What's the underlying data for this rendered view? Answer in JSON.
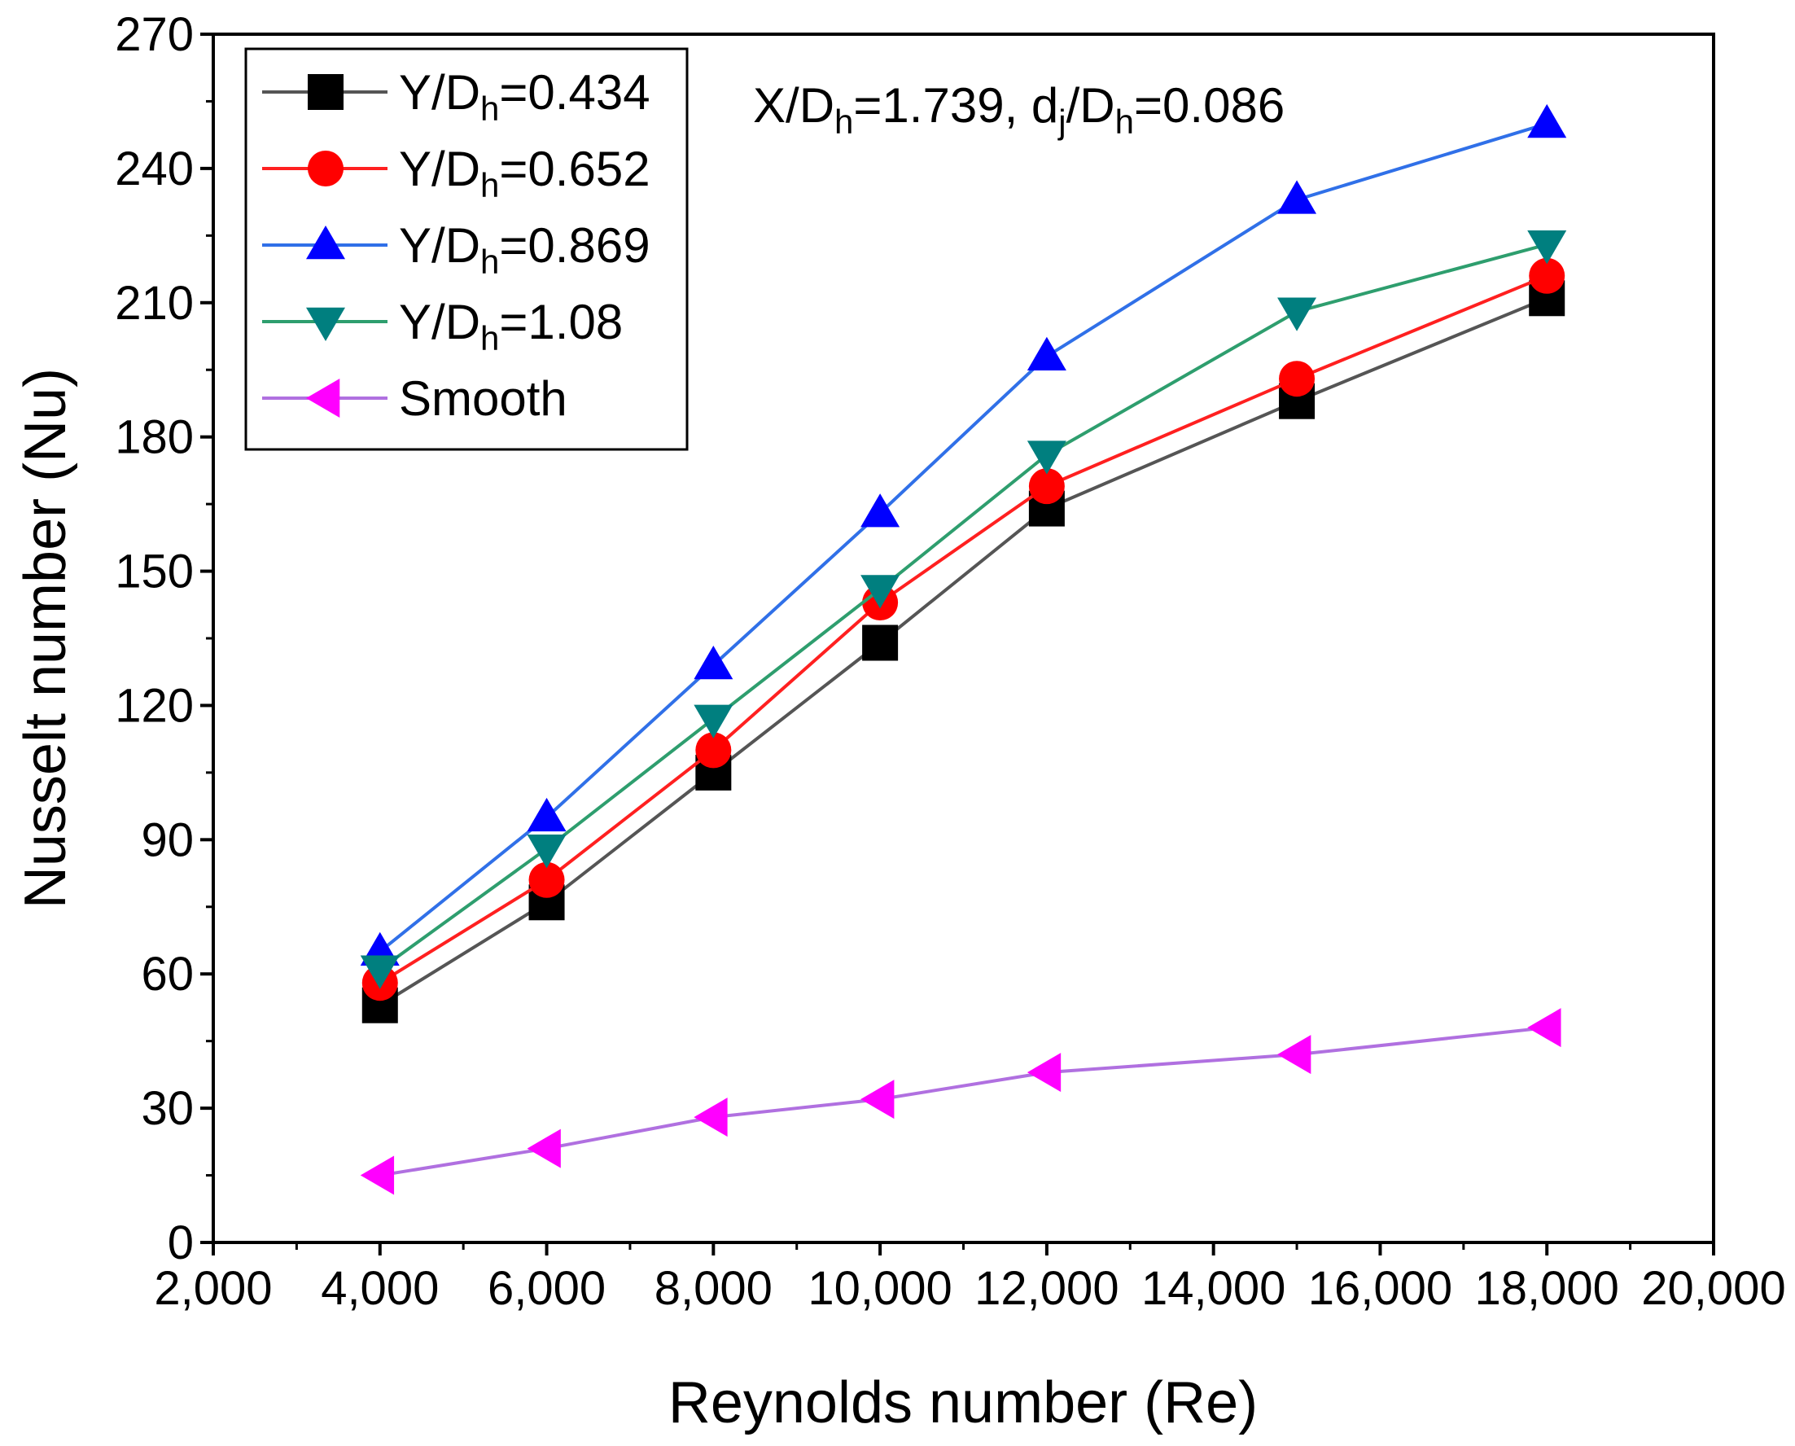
{
  "chart_data": {
    "type": "line",
    "xlabel": "Reynolds number (Re)",
    "ylabel": "Nusselt number (Nu)",
    "xlim": [
      2000,
      20000
    ],
    "ylim": [
      0,
      270
    ],
    "x_ticks": [
      2000,
      4000,
      6000,
      8000,
      10000,
      12000,
      14000,
      16000,
      18000,
      20000
    ],
    "x_tick_labels": [
      "2,000",
      "4,000",
      "6,000",
      "8,000",
      "10,000",
      "12,000",
      "14,000",
      "16,000",
      "18,000",
      "20,000"
    ],
    "y_ticks": [
      0,
      30,
      60,
      90,
      120,
      150,
      180,
      210,
      240,
      270
    ],
    "y_tick_labels": [
      "0",
      "30",
      "60",
      "90",
      "120",
      "150",
      "180",
      "210",
      "240",
      "270"
    ],
    "grid": false,
    "legend_position": "top-left",
    "annotation": {
      "parts": [
        "X/D",
        "h",
        "=1.739, d",
        "j",
        "/D",
        "h",
        "=0.086"
      ]
    },
    "series": [
      {
        "name": "Y/Dh=0.434",
        "label_parts": [
          "Y/D",
          "h",
          "=0.434"
        ],
        "marker": "square",
        "color": "#000000",
        "line_color": "#555555",
        "x": [
          4000,
          6000,
          8000,
          10000,
          12000,
          15000,
          18000
        ],
        "y": [
          53,
          76,
          105,
          134,
          164,
          188,
          211
        ]
      },
      {
        "name": "Y/Dh=0.652",
        "label_parts": [
          "Y/D",
          "h",
          "=0.652"
        ],
        "marker": "circle",
        "color": "#ff0000",
        "line_color": "#ff2020",
        "x": [
          4000,
          6000,
          8000,
          10000,
          12000,
          15000,
          18000
        ],
        "y": [
          58,
          81,
          110,
          143,
          169,
          193,
          216
        ]
      },
      {
        "name": "Y/Dh=0.869",
        "label_parts": [
          "Y/D",
          "h",
          "=0.869"
        ],
        "marker": "triangle-up",
        "color": "#0000ff",
        "line_color": "#3070e8",
        "x": [
          4000,
          6000,
          8000,
          10000,
          12000,
          15000,
          18000
        ],
        "y": [
          65,
          95,
          129,
          163,
          198,
          233,
          250
        ]
      },
      {
        "name": "Y/Dh=1.08",
        "label_parts": [
          "Y/D",
          "h",
          "=1.08"
        ],
        "marker": "triangle-down",
        "color": "#007f7f",
        "line_color": "#2e9e6e",
        "x": [
          4000,
          6000,
          8000,
          10000,
          12000,
          15000,
          18000
        ],
        "y": [
          61,
          88,
          117,
          146,
          176,
          208,
          223
        ]
      },
      {
        "name": "Smooth",
        "label_parts": [
          "Smooth"
        ],
        "marker": "triangle-left",
        "color": "#ff00ff",
        "line_color": "#b070e0",
        "x": [
          4000,
          6000,
          8000,
          10000,
          12000,
          15000,
          18000
        ],
        "y": [
          15,
          21,
          28,
          32,
          38,
          42,
          48
        ]
      }
    ]
  }
}
